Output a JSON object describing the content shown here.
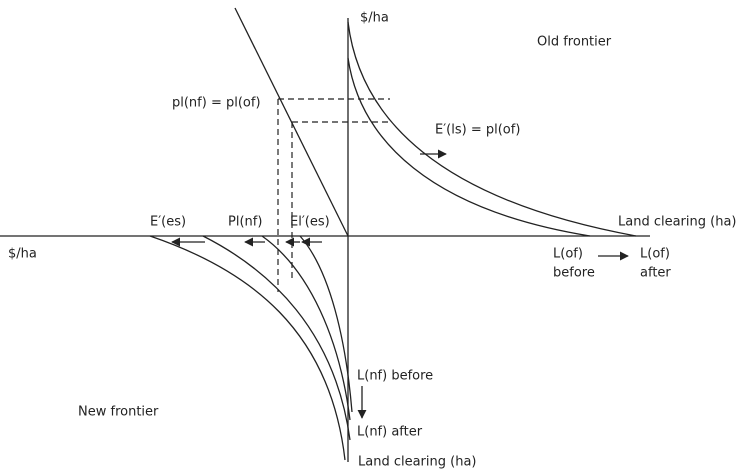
{
  "axes": {
    "top_unit": "$/ha",
    "left_unit": "$/ha",
    "right_label": "Land clearing (ha)",
    "bottom_label": "Land clearing (ha)"
  },
  "regions": {
    "old": "Old frontier",
    "new": "New frontier"
  },
  "labels": {
    "price_eq": "pl(nf) = pl(of)",
    "e_ls": "E′(ls) = pl(of)",
    "e_es": "E′(es)",
    "pl_nf": "Pl(nf)",
    "el_es": "El′(es)",
    "lof_before_1": "L(of)",
    "lof_before_2": "before",
    "lof_after_1": "L(of)",
    "lof_after_2": "after",
    "lnf_before": "L(nf) before",
    "lnf_after": "L(nf) after"
  }
}
